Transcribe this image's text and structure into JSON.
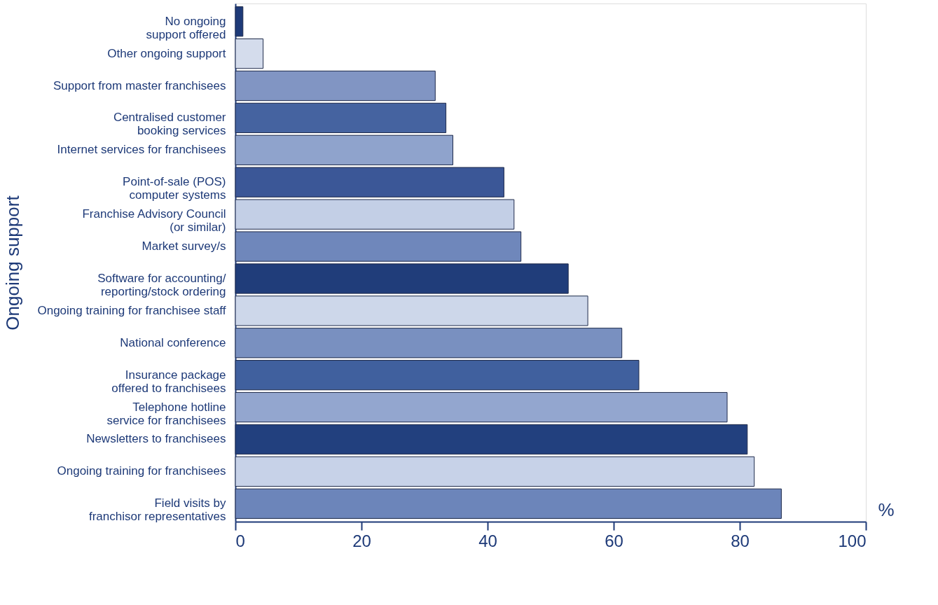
{
  "chart_data": {
    "type": "bar",
    "orientation": "horizontal",
    "ylabel": "Ongoing support",
    "xlabel": "%",
    "categories": [
      "No ongoing\nsupport offered",
      "Other ongoing support",
      "Support from master franchisees",
      "Centralised customer\nbooking services",
      "Internet services for franchisees",
      "Point-of-sale (POS)\ncomputer systems",
      "Franchise Advisory Council\n(or similar)",
      "Market survey/s",
      "Software for accounting/\nreporting/stock ordering",
      "Ongoing training for franchisee staff",
      "National conference",
      "Insurance package\noffered to franchisees",
      "Telephone hotline\nservice for franchisees",
      "Newsletters to franchisees",
      "Ongoing training for franchisees",
      "Field visits by\nfranchisor representatives"
    ],
    "values": [
      1.2,
      4.4,
      31.7,
      33.4,
      34.5,
      42.6,
      44.2,
      45.3,
      52.8,
      55.9,
      61.3,
      64.0,
      78.0,
      81.2,
      82.3,
      86.6
    ],
    "colors": [
      "#1e3a78",
      "#d4dcec",
      "#8195c3",
      "#4563a0",
      "#8fa3cc",
      "#3b5797",
      "#c3cfe6",
      "#6f87bb",
      "#203d7a",
      "#cdd7ea",
      "#7990c0",
      "#40609e",
      "#93a6cf",
      "#22407e",
      "#c7d2e8",
      "#6c85ba"
    ],
    "xlim": [
      0,
      100
    ],
    "xticks": [
      0,
      20,
      40,
      60,
      80,
      100
    ],
    "grid": false,
    "legend": false
  }
}
